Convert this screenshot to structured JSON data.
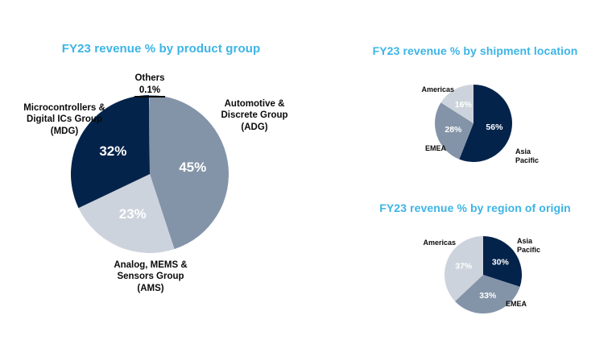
{
  "page": {
    "background": "#FFFFFF"
  },
  "colors": {
    "title_accent": "#3CB4E6",
    "dark_navy": "#03234B",
    "slate_blue_gray": "#8494A8",
    "light_gray": "#CDD3DC",
    "percent_text": "#FFFFFF",
    "label_text": "#0A0A0A"
  },
  "chart_data": [
    {
      "id": "product-group",
      "type": "pie",
      "title": "FY23 revenue % by product group",
      "legend_position": "outside",
      "slices": [
        {
          "label": "Automotive &\nDiscrete Group\n(ADG)",
          "value": 45,
          "pct_label": "45%",
          "color": "#8494A8",
          "pct_inside": true
        },
        {
          "label": "Analog, MEMS &\nSensors Group\n(AMS)",
          "value": 23,
          "pct_label": "23%",
          "color": "#CDD3DC",
          "pct_inside": true
        },
        {
          "label": "Microcontrollers &\nDigital ICs Group\n(MDG)",
          "value": 32,
          "pct_label": "32%",
          "color": "#03234B",
          "pct_inside": true
        },
        {
          "label": "Others",
          "value": 0.1,
          "pct_label": "0.1%",
          "color": "#FFFFFF",
          "pct_inside": false
        }
      ]
    },
    {
      "id": "shipment-location",
      "type": "pie",
      "title": "FY23 revenue % by shipment location",
      "legend_position": "outside",
      "slices": [
        {
          "label": "Asia\nPacific",
          "value": 56,
          "pct_label": "56%",
          "color": "#03234B",
          "pct_inside": true
        },
        {
          "label": "EMEA",
          "value": 28,
          "pct_label": "28%",
          "color": "#8494A8",
          "pct_inside": true
        },
        {
          "label": "Americas",
          "value": 16,
          "pct_label": "16%",
          "color": "#CDD3DC",
          "pct_inside": true
        }
      ]
    },
    {
      "id": "region-of-origin",
      "type": "pie",
      "title": "FY23 revenue % by region of origin",
      "legend_position": "outside",
      "slices": [
        {
          "label": "Asia\nPacific",
          "value": 30,
          "pct_label": "30%",
          "color": "#03234B",
          "pct_inside": true
        },
        {
          "label": "EMEA",
          "value": 33,
          "pct_label": "33%",
          "color": "#8494A8",
          "pct_inside": true
        },
        {
          "label": "Americas",
          "value": 37,
          "pct_label": "37%",
          "color": "#CDD3DC",
          "pct_inside": true
        }
      ]
    }
  ]
}
